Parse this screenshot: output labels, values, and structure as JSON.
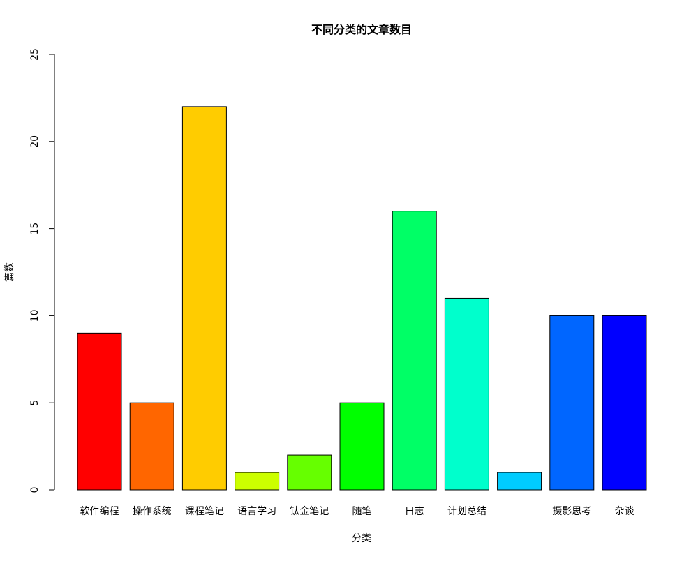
{
  "chart_data": {
    "type": "bar",
    "title": "不同分类的文章数目",
    "xlabel": "分类",
    "ylabel": "篇数",
    "categories": [
      "软件编程",
      "操作系统",
      "课程笔记",
      "语言学习",
      "钛金笔记",
      "随笔",
      "日志",
      "计划总结",
      "",
      "摄影思考",
      "杂谈"
    ],
    "values": [
      9,
      5,
      22,
      1,
      2,
      5,
      16,
      11,
      1,
      10,
      10
    ],
    "colors": [
      "#FF0000",
      "#FF6600",
      "#FFCC00",
      "#CCFF00",
      "#66FF00",
      "#00FF00",
      "#00FF66",
      "#00FFCC",
      "#00CCFF",
      "#0066FF",
      "#0000FF"
    ],
    "ylim": [
      0,
      25
    ],
    "yticks": [
      0,
      5,
      10,
      15,
      20,
      25
    ],
    "grid": false,
    "legend": "none"
  }
}
